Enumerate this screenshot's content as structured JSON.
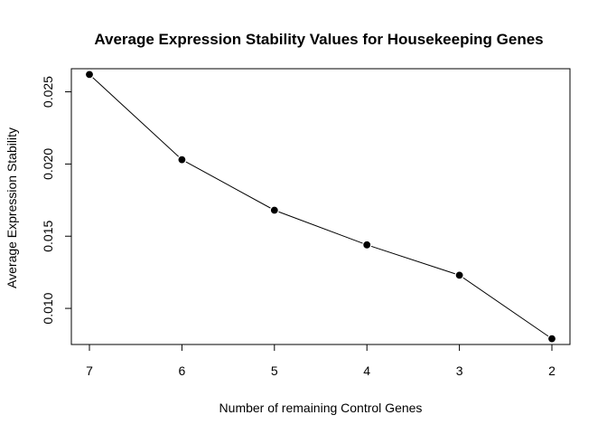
{
  "chart_data": {
    "type": "line",
    "title": "Average Expression Stability Values for Housekeeping Genes",
    "xlabel": "Number of remaining Control Genes",
    "ylabel": "Average Expression Stability",
    "categories": [
      "7",
      "6",
      "5",
      "4",
      "3",
      "2"
    ],
    "values": [
      0.0262,
      0.0203,
      0.0168,
      0.0144,
      0.0123,
      0.0079
    ],
    "ylim": [
      0.0075,
      0.0266
    ],
    "yticks": [
      "0.010",
      "0.015",
      "0.020",
      "0.025"
    ],
    "ytick_values": [
      0.01,
      0.015,
      0.02,
      0.025
    ],
    "grid": false,
    "marker": "filled-circle",
    "line_color": "#000000",
    "point_color": "#000000"
  }
}
